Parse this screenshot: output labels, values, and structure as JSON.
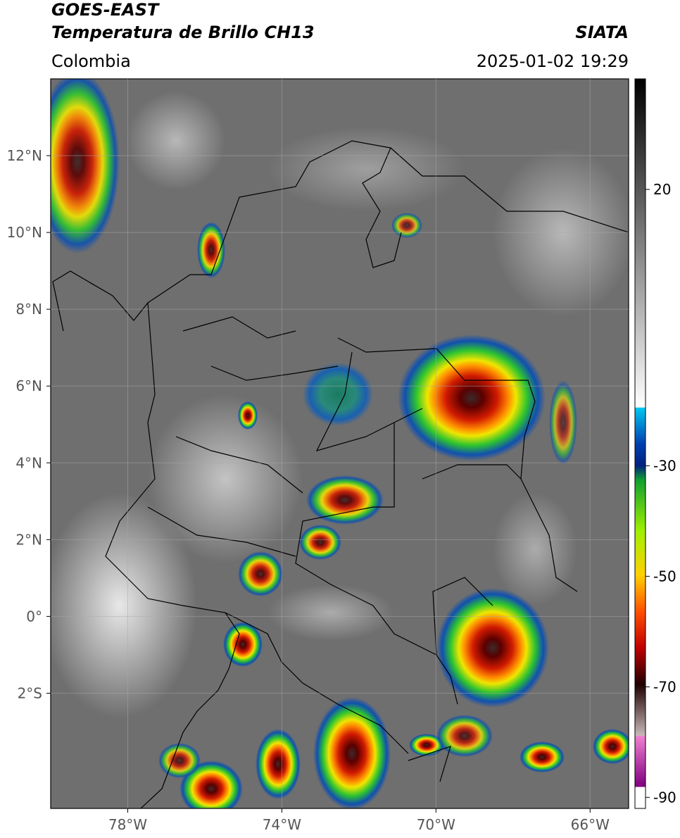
{
  "header": {
    "title": "GOES-EAST",
    "subtitle": "Temperatura de Brillo CH13",
    "region": "Colombia",
    "source": "SIATA",
    "datetime": "2025-01-02 19:29"
  },
  "map": {
    "xlim": [
      -80,
      -65
    ],
    "ylim": [
      -5,
      14
    ],
    "xticks": [
      {
        "value": -78,
        "label": "78°W"
      },
      {
        "value": -74,
        "label": "74°W"
      },
      {
        "value": -70,
        "label": "70°W"
      },
      {
        "value": -66,
        "label": "66°W"
      }
    ],
    "yticks": [
      {
        "value": 12,
        "label": "12°N"
      },
      {
        "value": 10,
        "label": "10°N"
      },
      {
        "value": 8,
        "label": "8°N"
      },
      {
        "value": 6,
        "label": "6°N"
      },
      {
        "value": 4,
        "label": "4°N"
      },
      {
        "value": 2,
        "label": "2°N"
      },
      {
        "value": 0,
        "label": "0°"
      },
      {
        "value": -2,
        "label": "2°S"
      }
    ],
    "grid": true
  },
  "colorbar": {
    "lim": [
      -92,
      40
    ],
    "ticks": [
      20,
      -30,
      -50,
      -70,
      -90
    ]
  }
}
